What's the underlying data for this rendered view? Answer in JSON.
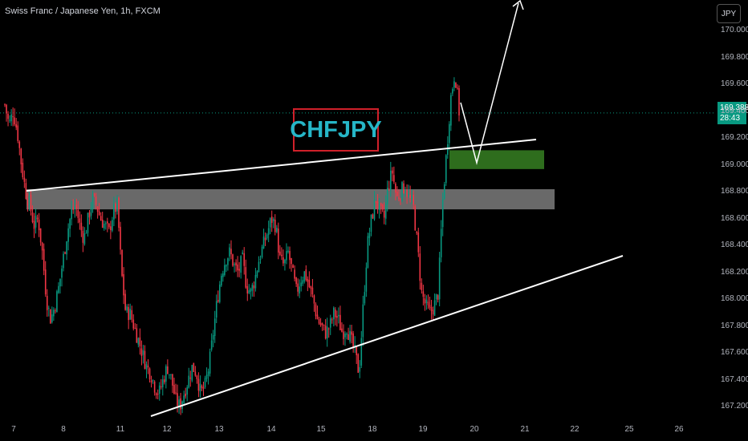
{
  "header": {
    "symbol_text": "Swiss Franc / Japanese Yen, 1h, FXCM",
    "currency_button": "JPY"
  },
  "price_label": {
    "price": "169.388",
    "countdown": "28:43"
  },
  "annotation": {
    "title": "CHFJPY"
  },
  "colors": {
    "up": "#089981",
    "down": "#f23645",
    "price_tag": "#089981",
    "zone_grey": "#6f6f6f",
    "zone_green": "#2e6d1d",
    "title_border": "#d0202a",
    "title_text": "#26b6c7"
  },
  "chart_data": {
    "type": "candlestick",
    "y_axis": {
      "min": 167.1,
      "max": 170.05,
      "ticks": [
        "170.000",
        "169.800",
        "169.600",
        "169.400",
        "169.200",
        "169.000",
        "168.800",
        "168.600",
        "168.400",
        "168.200",
        "168.000",
        "167.800",
        "167.600",
        "167.400",
        "167.200"
      ]
    },
    "x_axis": {
      "ticks": [
        "7",
        "8",
        "11",
        "12",
        "13",
        "14",
        "15",
        "18",
        "19",
        "20",
        "21",
        "22",
        "25",
        "26"
      ]
    },
    "current_price": 169.388,
    "price_path": [
      169.45,
      169.3,
      169.4,
      169.25,
      169.0,
      168.8,
      168.7,
      168.55,
      168.6,
      168.35,
      168.0,
      167.85,
      167.95,
      168.1,
      168.3,
      168.5,
      168.65,
      168.7,
      168.55,
      168.45,
      168.6,
      168.75,
      168.7,
      168.6,
      168.55,
      168.5,
      168.65,
      168.7,
      168.2,
      167.9,
      167.9,
      167.8,
      167.7,
      167.6,
      167.5,
      167.45,
      167.35,
      167.3,
      167.4,
      167.5,
      167.4,
      167.25,
      167.2,
      167.3,
      167.4,
      167.5,
      167.45,
      167.3,
      167.35,
      167.5,
      167.75,
      168.0,
      168.2,
      168.3,
      168.35,
      168.25,
      168.2,
      168.3,
      168.1,
      168.05,
      168.15,
      168.3,
      168.4,
      168.5,
      168.6,
      168.55,
      168.3,
      168.25,
      168.35,
      168.2,
      168.05,
      168.15,
      168.2,
      168.1,
      168.0,
      167.85,
      167.8,
      167.75,
      167.8,
      167.9,
      167.85,
      167.75,
      167.8,
      167.7,
      167.6,
      167.45,
      167.95,
      168.4,
      168.6,
      168.75,
      168.65,
      168.6,
      168.85,
      168.95,
      168.75,
      168.8,
      168.85,
      168.75,
      168.7,
      168.4,
      168.05,
      167.95,
      167.9,
      167.95,
      168.05,
      168.7,
      169.1,
      169.5,
      169.7,
      169.4
    ],
    "zones": [
      {
        "name": "resistance-zone",
        "from": 168.67,
        "to": 168.82
      },
      {
        "name": "buy-zone",
        "from": 168.97,
        "to": 169.11
      }
    ],
    "title": "CHFJPY"
  }
}
